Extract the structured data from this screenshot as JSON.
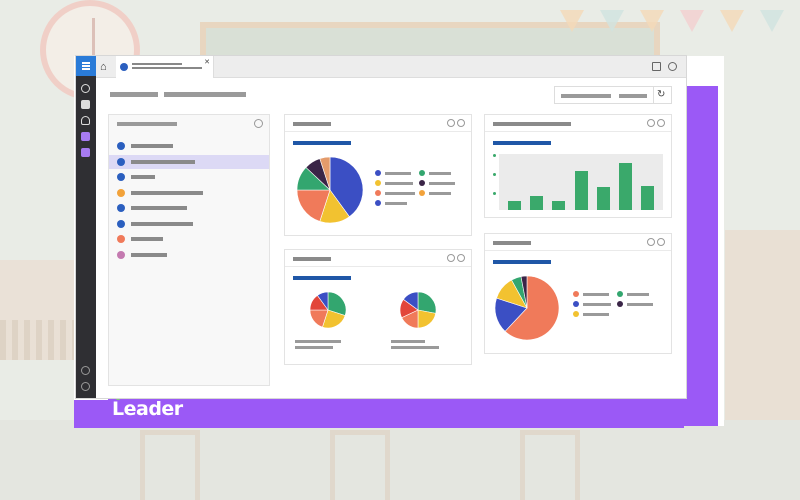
{
  "brand": {
    "logo_text": "Leader"
  },
  "colors": {
    "purple": "#9b59f6",
    "accent_blue": "#1f57a7",
    "green": "#3aa96b",
    "sidebar_dark": "#2f2f33",
    "pie_colors": [
      "#3b4fc4",
      "#f2c230",
      "#f07a5a",
      "#33a66f",
      "#3a2547"
    ]
  },
  "sidebar": {
    "icons": [
      "menu-icon",
      "search-icon",
      "calendar-icon",
      "microphone-icon",
      "document-icon",
      "flag-icon",
      "help-icon",
      "logout-icon"
    ]
  },
  "list_panel": {
    "items": [
      {
        "icon": "group-icon",
        "selected": false
      },
      {
        "icon": "group-icon",
        "selected": true
      },
      {
        "icon": "group-icon",
        "selected": false
      },
      {
        "icon": "pencil-icon",
        "selected": false
      },
      {
        "icon": "shirt-icon",
        "selected": false
      },
      {
        "icon": "cloud-icon",
        "selected": false
      },
      {
        "icon": "cone-icon",
        "selected": false
      },
      {
        "icon": "circle-icon",
        "selected": false
      }
    ]
  },
  "bar_card": {
    "values": [
      1,
      1.5,
      1,
      4.2,
      2.5,
      5,
      2.6
    ],
    "ymax": 6
  },
  "pie_main": {
    "values": [
      40,
      15,
      20,
      12,
      8,
      5
    ]
  },
  "pie_right": {
    "values": [
      62,
      18,
      12,
      5,
      3
    ]
  },
  "pie_small_a": {
    "values": [
      30,
      25,
      20,
      15,
      10
    ]
  },
  "pie_small_b": {
    "values": [
      28,
      22,
      18,
      17,
      15
    ]
  }
}
